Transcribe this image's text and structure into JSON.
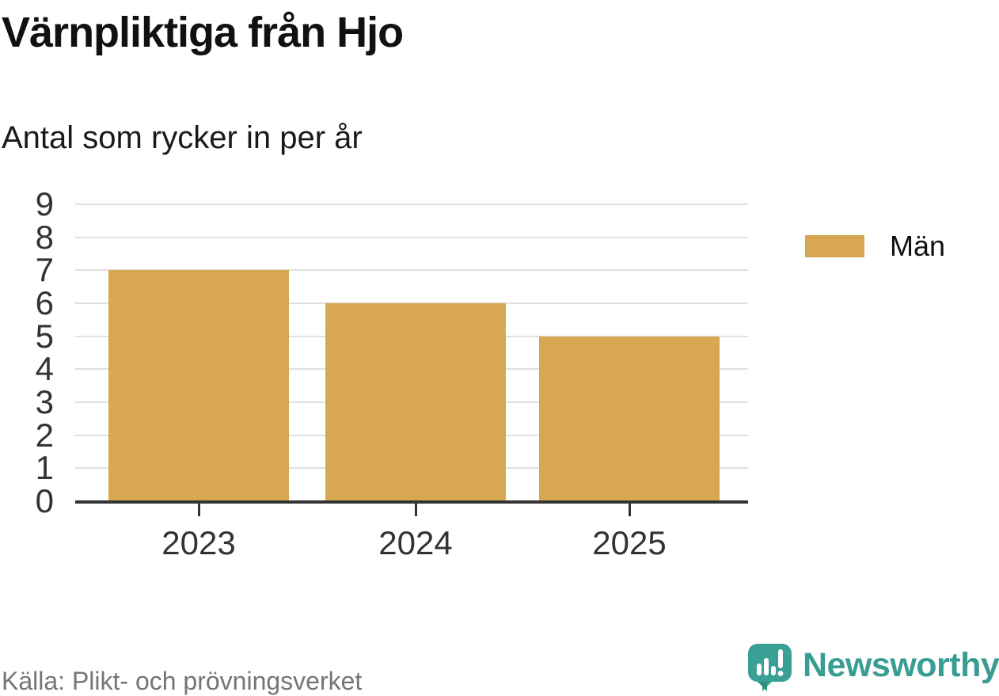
{
  "header": {
    "title": "Värnpliktiga från Hjo",
    "subtitle": "Antal som rycker in per år"
  },
  "legend": {
    "label": "Män",
    "swatch_color": "#d7a851"
  },
  "footer": {
    "source": "Källa: Plikt- och prövningsverket",
    "brand": "Newsworthy"
  },
  "colors": {
    "bar": "#d7a851",
    "gridline": "#e0e0e0",
    "axis_line": "#333333",
    "axis_text": "#333333",
    "title_text": "#111111",
    "source_text": "#757575",
    "brand_teal": "#399d94"
  },
  "chart_data": {
    "type": "bar",
    "title": "Värnpliktiga från Hjo",
    "subtitle": "Antal som rycker in per år",
    "categories": [
      "2023",
      "2024",
      "2025"
    ],
    "series": [
      {
        "name": "Män",
        "color": "#d7a851",
        "values": [
          7,
          6,
          5
        ]
      }
    ],
    "ylabel": "",
    "xlabel": "",
    "ylim": [
      0,
      9
    ],
    "yticks": [
      0,
      1,
      2,
      3,
      4,
      5,
      6,
      7,
      8,
      9
    ],
    "grid": true,
    "legend_position": "right",
    "source": "Källa: Plikt- och prövningsverket"
  }
}
